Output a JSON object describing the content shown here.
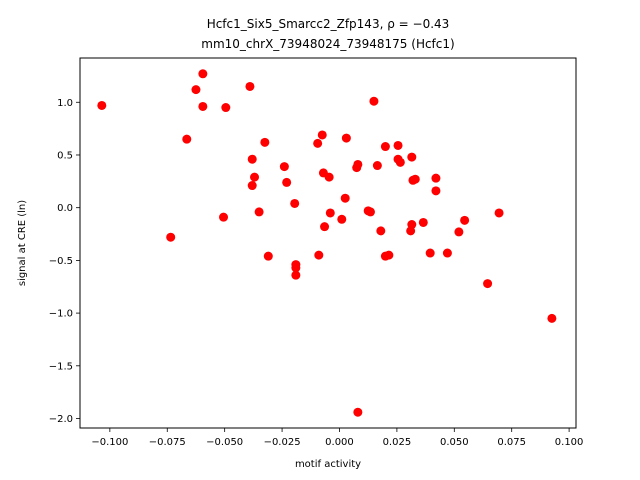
{
  "chart_data": {
    "type": "scatter",
    "title_line1": "Hcfc1_Six5_Smarcc2_Zfp143, ρ = −0.43",
    "title_line2": "mm10_chrX_73948024_73948175 (Hcfc1)",
    "xlabel": "motif activity",
    "ylabel": "signal at CRE (ln)",
    "xlim": [
      -0.113,
      0.103
    ],
    "ylim": [
      -2.09,
      1.42
    ],
    "xticks": [
      -0.1,
      -0.075,
      -0.05,
      -0.025,
      0.0,
      0.025,
      0.05,
      0.075,
      0.1
    ],
    "xtick_labels": [
      "−0.100",
      "−0.075",
      "−0.050",
      "−0.025",
      "0.000",
      "0.025",
      "0.050",
      "0.075",
      "0.100"
    ],
    "yticks": [
      -2.0,
      -1.5,
      -1.0,
      -0.5,
      0.0,
      0.5,
      1.0
    ],
    "ytick_labels": [
      "−2.0",
      "−1.5",
      "−1.0",
      "−0.5",
      "0.0",
      "0.5",
      "1.0"
    ],
    "grid": false,
    "marker_color": "#ff0000",
    "points": [
      {
        "x": -0.1035,
        "y": 0.97
      },
      {
        "x": -0.0735,
        "y": -0.28
      },
      {
        "x": -0.0665,
        "y": 0.65
      },
      {
        "x": -0.0625,
        "y": 1.12
      },
      {
        "x": -0.0595,
        "y": 1.27
      },
      {
        "x": -0.0595,
        "y": 0.96
      },
      {
        "x": -0.0505,
        "y": -0.09
      },
      {
        "x": -0.0495,
        "y": 0.95
      },
      {
        "x": -0.039,
        "y": 1.15
      },
      {
        "x": -0.038,
        "y": 0.46
      },
      {
        "x": -0.038,
        "y": 0.21
      },
      {
        "x": -0.037,
        "y": 0.29
      },
      {
        "x": -0.035,
        "y": -0.04
      },
      {
        "x": -0.0325,
        "y": 0.62
      },
      {
        "x": -0.031,
        "y": -0.46
      },
      {
        "x": -0.024,
        "y": 0.39
      },
      {
        "x": -0.023,
        "y": 0.24
      },
      {
        "x": -0.0195,
        "y": 0.04
      },
      {
        "x": -0.019,
        "y": -0.54
      },
      {
        "x": -0.019,
        "y": -0.57
      },
      {
        "x": -0.019,
        "y": -0.64
      },
      {
        "x": -0.0095,
        "y": 0.61
      },
      {
        "x": -0.009,
        "y": -0.45
      },
      {
        "x": -0.0075,
        "y": 0.69
      },
      {
        "x": -0.007,
        "y": 0.33
      },
      {
        "x": -0.0065,
        "y": -0.18
      },
      {
        "x": -0.0045,
        "y": 0.29
      },
      {
        "x": -0.004,
        "y": -0.05
      },
      {
        "x": 0.001,
        "y": -0.11
      },
      {
        "x": 0.0025,
        "y": 0.09
      },
      {
        "x": 0.003,
        "y": 0.66
      },
      {
        "x": 0.0075,
        "y": 0.38
      },
      {
        "x": 0.008,
        "y": 0.41
      },
      {
        "x": 0.008,
        "y": -1.94
      },
      {
        "x": 0.0125,
        "y": -0.03
      },
      {
        "x": 0.0135,
        "y": -0.04
      },
      {
        "x": 0.015,
        "y": 1.01
      },
      {
        "x": 0.0165,
        "y": 0.4
      },
      {
        "x": 0.018,
        "y": -0.22
      },
      {
        "x": 0.02,
        "y": 0.58
      },
      {
        "x": 0.02,
        "y": -0.46
      },
      {
        "x": 0.0215,
        "y": -0.45
      },
      {
        "x": 0.0255,
        "y": 0.59
      },
      {
        "x": 0.0255,
        "y": 0.46
      },
      {
        "x": 0.0265,
        "y": 0.43
      },
      {
        "x": 0.031,
        "y": -0.22
      },
      {
        "x": 0.0315,
        "y": -0.16
      },
      {
        "x": 0.0315,
        "y": 0.48
      },
      {
        "x": 0.032,
        "y": 0.26
      },
      {
        "x": 0.033,
        "y": 0.27
      },
      {
        "x": 0.0365,
        "y": -0.14
      },
      {
        "x": 0.0395,
        "y": -0.43
      },
      {
        "x": 0.042,
        "y": 0.28
      },
      {
        "x": 0.042,
        "y": 0.16
      },
      {
        "x": 0.047,
        "y": -0.43
      },
      {
        "x": 0.052,
        "y": -0.23
      },
      {
        "x": 0.0545,
        "y": -0.12
      },
      {
        "x": 0.0645,
        "y": -0.72
      },
      {
        "x": 0.0695,
        "y": -0.05
      },
      {
        "x": 0.0925,
        "y": -1.05
      }
    ]
  }
}
